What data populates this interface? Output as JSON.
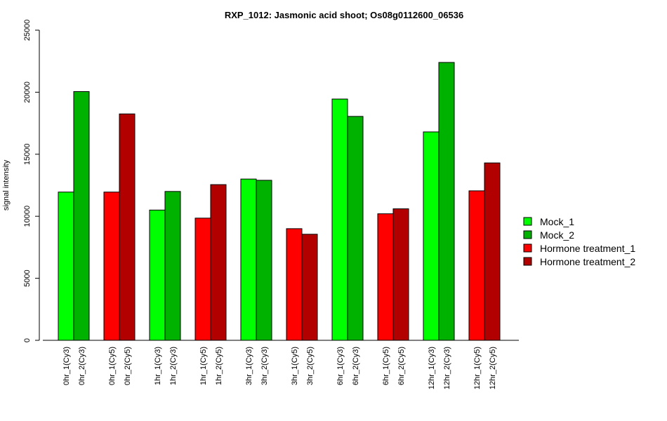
{
  "chart_data": {
    "type": "bar",
    "title": "RXP_1012: Jasmonic acid shoot; Os08g0112600_06536",
    "xlabel": "",
    "ylabel": "signal intensity",
    "ylim": [
      0,
      25000
    ],
    "yticks": [
      0,
      5000,
      10000,
      15000,
      20000,
      25000
    ],
    "grid": false,
    "legend_position": "right",
    "legend": [
      {
        "name": "Mock_1",
        "color": "#00ff00"
      },
      {
        "name": "Mock_2",
        "color": "#00b200"
      },
      {
        "name": "Hormone treatment_1",
        "color": "#ff0000"
      },
      {
        "name": "Hormone treatment_2",
        "color": "#b20000"
      }
    ],
    "groups": [
      {
        "bars": [
          {
            "label": "0hr_1(Cy3)",
            "value": 11950,
            "color": "#00ff00"
          },
          {
            "label": "0hr_2(Cy3)",
            "value": 20050,
            "color": "#00b200"
          }
        ]
      },
      {
        "bars": [
          {
            "label": "0hr_1(Cy5)",
            "value": 11950,
            "color": "#ff0000"
          },
          {
            "label": "0hr_2(Cy5)",
            "value": 18250,
            "color": "#b20000"
          }
        ]
      },
      {
        "bars": [
          {
            "label": "1hr_1(Cy3)",
            "value": 10500,
            "color": "#00ff00"
          },
          {
            "label": "1hr_2(Cy3)",
            "value": 12000,
            "color": "#00b200"
          }
        ]
      },
      {
        "bars": [
          {
            "label": "1hr_1(Cy5)",
            "value": 9850,
            "color": "#ff0000"
          },
          {
            "label": "1hr_2(Cy5)",
            "value": 12550,
            "color": "#b20000"
          }
        ]
      },
      {
        "bars": [
          {
            "label": "3hr_1(Cy3)",
            "value": 13000,
            "color": "#00ff00"
          },
          {
            "label": "3hr_2(Cy3)",
            "value": 12900,
            "color": "#00b200"
          }
        ]
      },
      {
        "bars": [
          {
            "label": "3hr_1(Cy5)",
            "value": 9000,
            "color": "#ff0000"
          },
          {
            "label": "3hr_2(Cy5)",
            "value": 8550,
            "color": "#b20000"
          }
        ]
      },
      {
        "bars": [
          {
            "label": "6hr_1(Cy3)",
            "value": 19450,
            "color": "#00ff00"
          },
          {
            "label": "6hr_2(Cy3)",
            "value": 18050,
            "color": "#00b200"
          }
        ]
      },
      {
        "bars": [
          {
            "label": "6hr_1(Cy5)",
            "value": 10200,
            "color": "#ff0000"
          },
          {
            "label": "6hr_2(Cy5)",
            "value": 10600,
            "color": "#b20000"
          }
        ]
      },
      {
        "bars": [
          {
            "label": "12hr_1(Cy3)",
            "value": 16800,
            "color": "#00ff00"
          },
          {
            "label": "12hr_2(Cy3)",
            "value": 22400,
            "color": "#00b200"
          }
        ]
      },
      {
        "bars": [
          {
            "label": "12hr_1(Cy5)",
            "value": 12050,
            "color": "#ff0000"
          },
          {
            "label": "12hr_2(Cy5)",
            "value": 14300,
            "color": "#b20000"
          }
        ]
      }
    ]
  }
}
